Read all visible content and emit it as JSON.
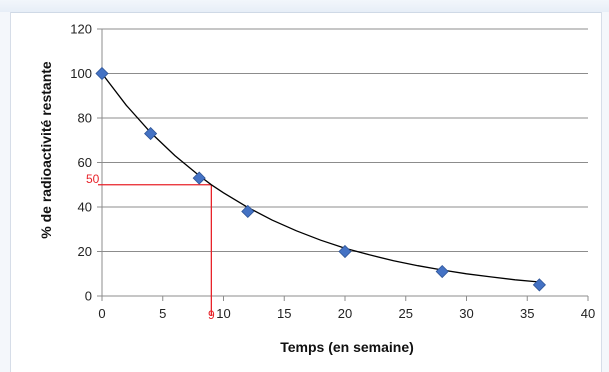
{
  "chart_data": {
    "type": "scatter",
    "title": "",
    "xlabel": "Temps (en semaine)",
    "ylabel": "% de radioactivité restante",
    "xlim": [
      0,
      40
    ],
    "ylim": [
      0,
      120
    ],
    "x_ticks": [
      0,
      5,
      10,
      15,
      20,
      25,
      30,
      35,
      40
    ],
    "y_ticks": [
      0,
      20,
      40,
      60,
      80,
      100,
      120
    ],
    "grid": "horizontal",
    "legend": "none",
    "series": [
      {
        "marker": "diamond",
        "color": "#4472c4",
        "x": [
          0,
          4,
          8,
          12,
          20,
          28,
          36
        ],
        "y": [
          100,
          73,
          53,
          38,
          20,
          11,
          5
        ]
      }
    ],
    "trendline": {
      "kind": "exponential",
      "color": "#000000",
      "x": [
        0,
        2,
        4,
        6,
        8,
        9,
        10,
        12,
        14,
        16,
        18,
        20,
        22,
        24,
        26,
        28,
        30,
        32,
        34,
        36
      ],
      "y": [
        100,
        85.7,
        73.5,
        63.1,
        54.1,
        50.0,
        46.4,
        39.8,
        34.1,
        29.3,
        25.1,
        21.5,
        18.5,
        15.8,
        13.6,
        11.7,
        10.0,
        8.6,
        7.3,
        6.3
      ]
    },
    "annotation": {
      "color": "#e8232a",
      "x_value": 9,
      "y_value": 50,
      "x_label": "9",
      "y_label": "50"
    }
  }
}
